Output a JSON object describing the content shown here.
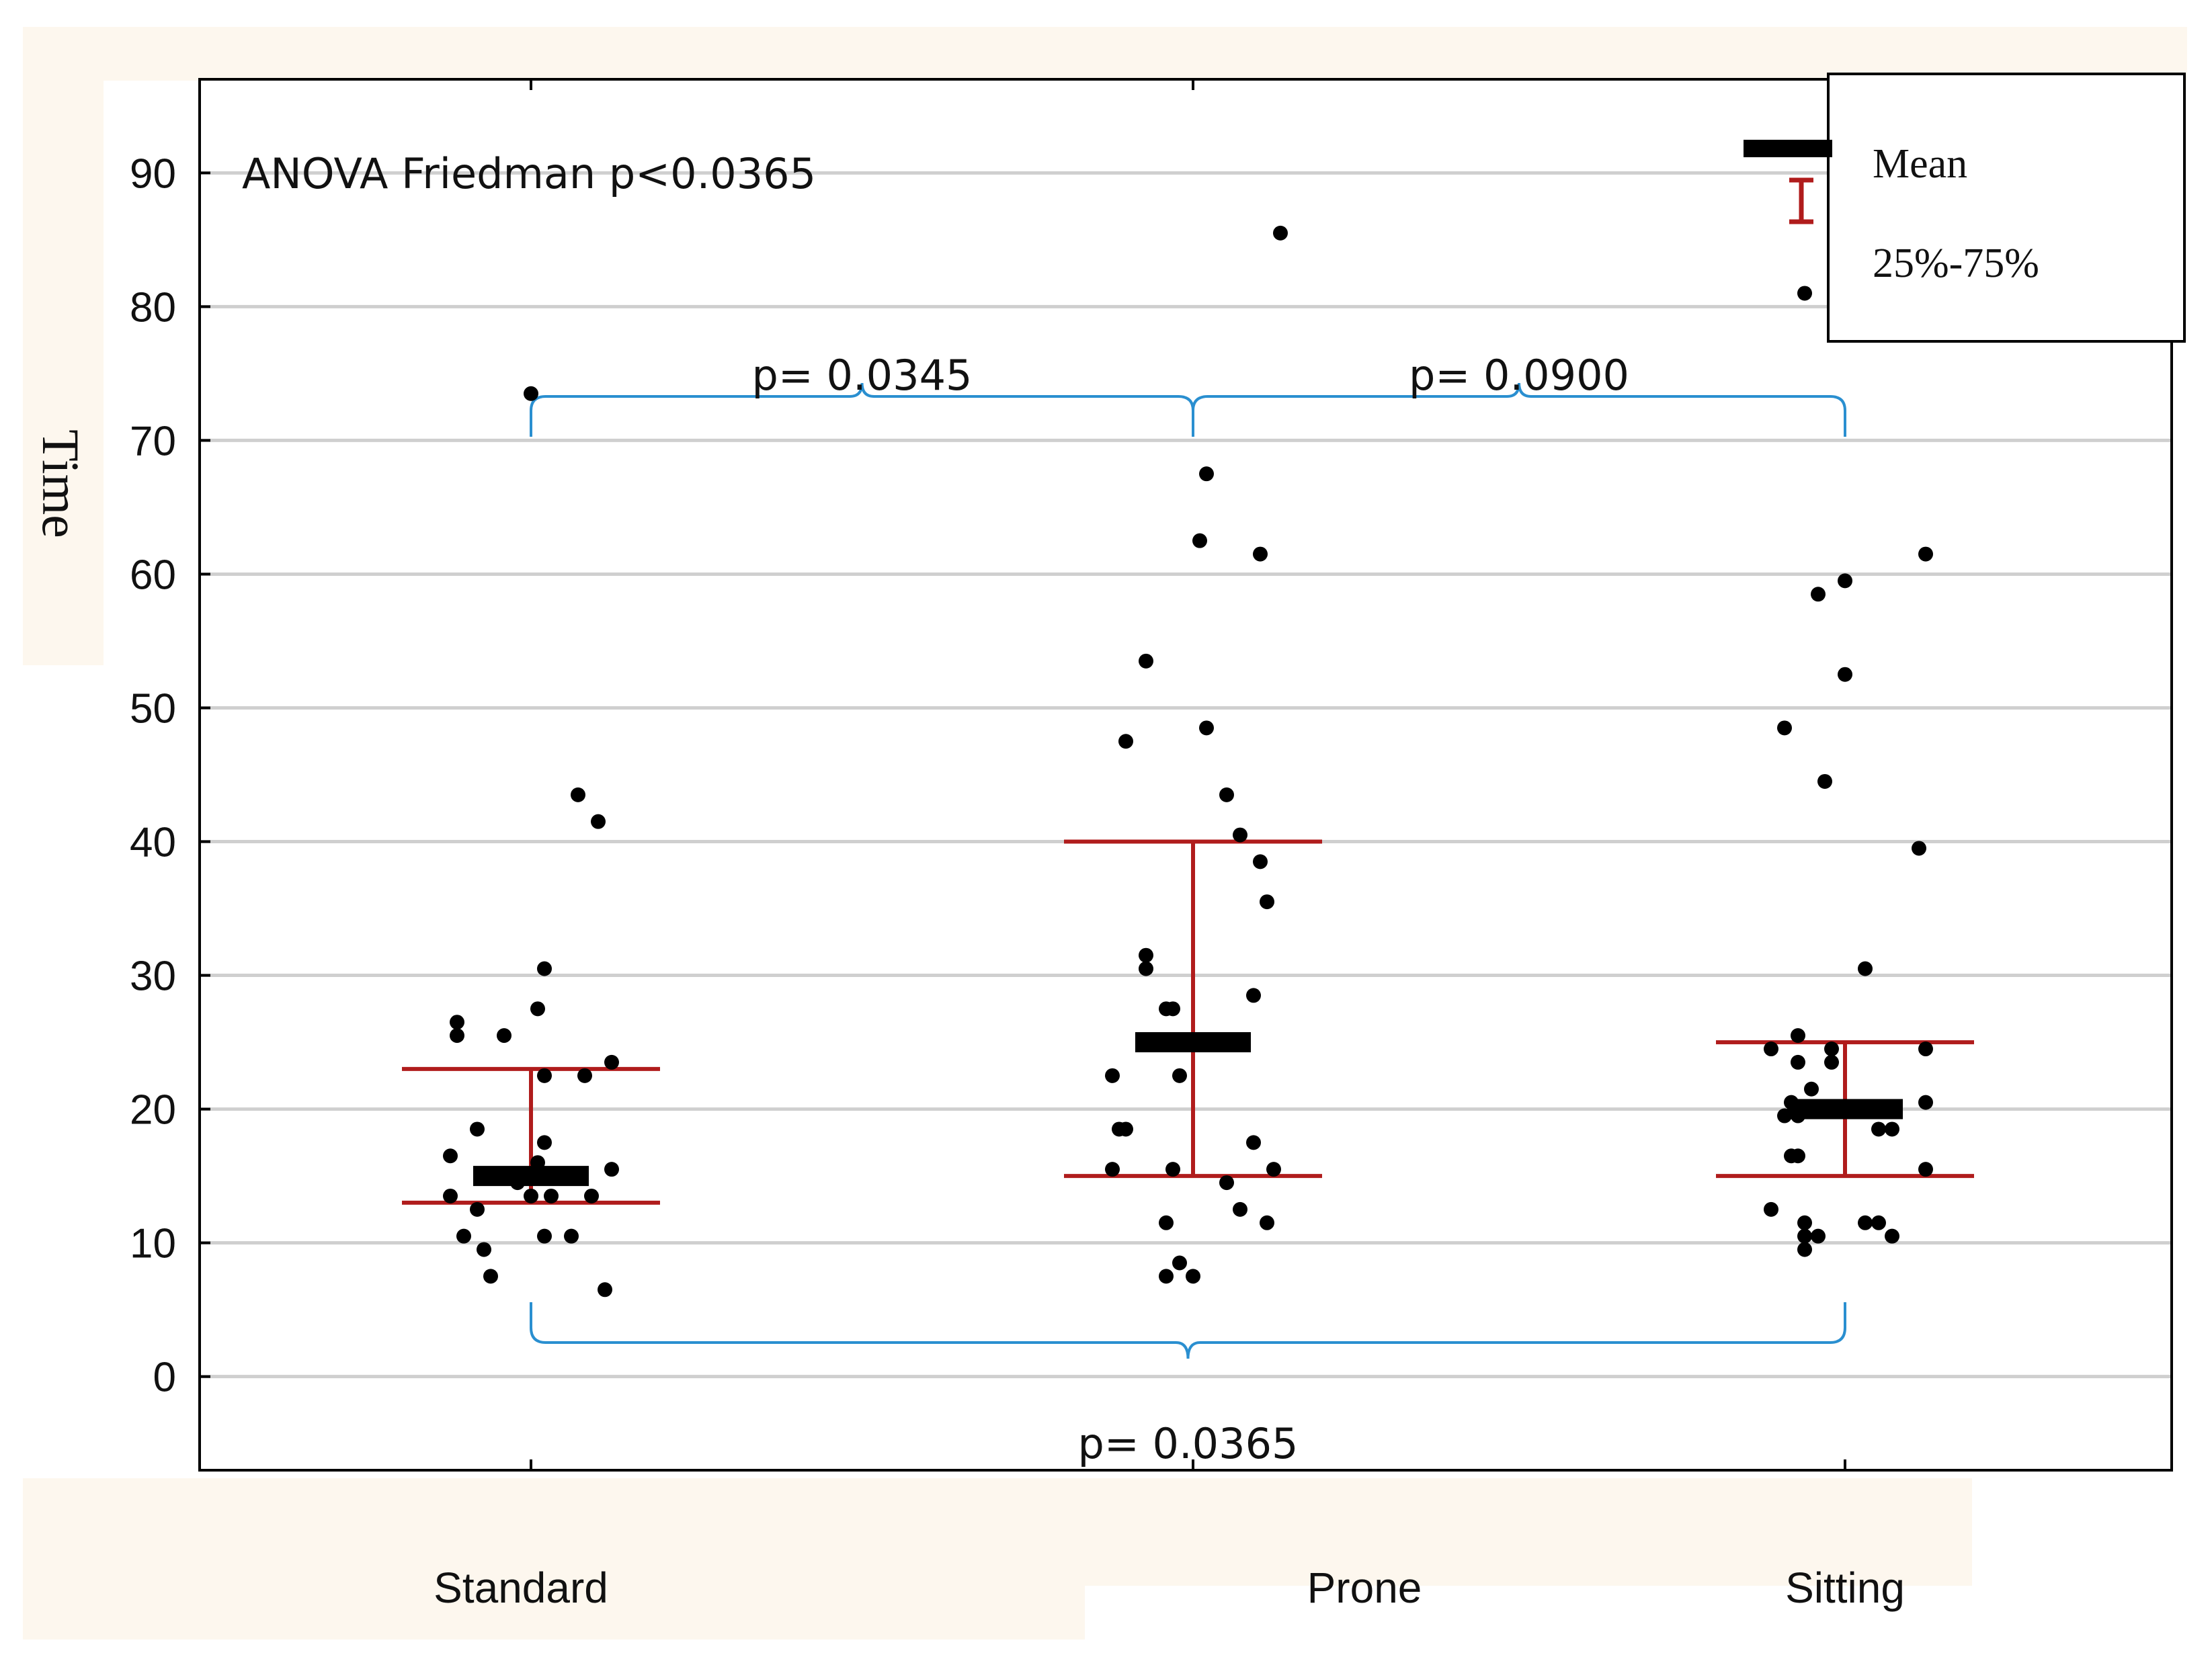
{
  "chart_data": {
    "type": "scatter",
    "title": "",
    "xlabel": "",
    "ylabel": "Time",
    "ylim": [
      -7,
      97
    ],
    "yticks": [
      0,
      10,
      20,
      30,
      40,
      50,
      60,
      70,
      80,
      90
    ],
    "grid": true,
    "legend_position": "top-right",
    "categories": [
      "Standard",
      "Prone",
      "Sitting"
    ],
    "annotation": "ANOVA Friedman p<0.0365",
    "comparisons": [
      {
        "from": "Standard",
        "to": "Prone",
        "label": "p= 0.0345",
        "side": "top"
      },
      {
        "from": "Prone",
        "to": "Sitting",
        "label": "p= 0.0900",
        "side": "top"
      },
      {
        "from": "Standard",
        "to": "Sitting",
        "label": "p= 0.0365",
        "side": "bottom"
      }
    ],
    "legend": {
      "mean": "Mean",
      "range": "25%-75%"
    },
    "colors": {
      "mean": "#000000",
      "range": "#b01c1c",
      "points": "#000000",
      "bracket": "#2a8fd0",
      "grid": "#cfcfcf"
    },
    "summary": [
      {
        "category": "Standard",
        "mean": 15,
        "q1": 13,
        "q3": 23
      },
      {
        "category": "Prone",
        "mean": 25,
        "q1": 15,
        "q3": 40
      },
      {
        "category": "Sitting",
        "mean": 20,
        "q1": 15,
        "q3": 25
      }
    ],
    "series": [
      {
        "category": "Standard",
        "points": [
          {
            "jitter": 0,
            "y": 73.5
          },
          {
            "jitter": 0.07,
            "y": 43.5
          },
          {
            "jitter": 0.1,
            "y": 41.5
          },
          {
            "jitter": 0.02,
            "y": 30.5
          },
          {
            "jitter": 0.01,
            "y": 27.5
          },
          {
            "jitter": -0.11,
            "y": 26.5
          },
          {
            "jitter": -0.11,
            "y": 25.5
          },
          {
            "jitter": -0.04,
            "y": 25.5
          },
          {
            "jitter": 0.12,
            "y": 23.5
          },
          {
            "jitter": 0.02,
            "y": 22.5
          },
          {
            "jitter": 0.08,
            "y": 22.5
          },
          {
            "jitter": -0.08,
            "y": 18.5
          },
          {
            "jitter": 0.02,
            "y": 17.5
          },
          {
            "jitter": -0.12,
            "y": 16.5
          },
          {
            "jitter": 0.01,
            "y": 16
          },
          {
            "jitter": -0.02,
            "y": 14.5
          },
          {
            "jitter": 0.12,
            "y": 15.5
          },
          {
            "jitter": -0.12,
            "y": 13.5
          },
          {
            "jitter": 0,
            "y": 13.5
          },
          {
            "jitter": 0.03,
            "y": 13.5
          },
          {
            "jitter": 0.09,
            "y": 13.5
          },
          {
            "jitter": -0.08,
            "y": 12.5
          },
          {
            "jitter": -0.1,
            "y": 10.5
          },
          {
            "jitter": 0.02,
            "y": 10.5
          },
          {
            "jitter": 0.06,
            "y": 10.5
          },
          {
            "jitter": -0.07,
            "y": 9.5
          },
          {
            "jitter": -0.06,
            "y": 7.5
          },
          {
            "jitter": 0.11,
            "y": 6.5
          }
        ]
      },
      {
        "category": "Prone",
        "points": [
          {
            "jitter": 0.13,
            "y": 85.5
          },
          {
            "jitter": 0.02,
            "y": 67.5
          },
          {
            "jitter": 0.01,
            "y": 62.5
          },
          {
            "jitter": 0.1,
            "y": 61.5
          },
          {
            "jitter": -0.07,
            "y": 53.5
          },
          {
            "jitter": -0.1,
            "y": 47.5
          },
          {
            "jitter": 0.02,
            "y": 48.5
          },
          {
            "jitter": 0.05,
            "y": 43.5
          },
          {
            "jitter": 0.07,
            "y": 40.5
          },
          {
            "jitter": 0.1,
            "y": 38.5
          },
          {
            "jitter": 0.11,
            "y": 35.5
          },
          {
            "jitter": -0.07,
            "y": 31.5
          },
          {
            "jitter": -0.07,
            "y": 30.5
          },
          {
            "jitter": 0.09,
            "y": 28.5
          },
          {
            "jitter": -0.04,
            "y": 27.5
          },
          {
            "jitter": -0.03,
            "y": 27.5
          },
          {
            "jitter": -0.12,
            "y": 22.5
          },
          {
            "jitter": -0.02,
            "y": 22.5
          },
          {
            "jitter": -0.11,
            "y": 18.5
          },
          {
            "jitter": -0.1,
            "y": 18.5
          },
          {
            "jitter": -0.12,
            "y": 15.5
          },
          {
            "jitter": -0.03,
            "y": 15.5
          },
          {
            "jitter": 0.12,
            "y": 15.5
          },
          {
            "jitter": 0.09,
            "y": 17.5
          },
          {
            "jitter": 0.05,
            "y": 14.5
          },
          {
            "jitter": 0.07,
            "y": 12.5
          },
          {
            "jitter": -0.04,
            "y": 11.5
          },
          {
            "jitter": 0.11,
            "y": 11.5
          },
          {
            "jitter": -0.02,
            "y": 8.5
          },
          {
            "jitter": -0.04,
            "y": 7.5
          },
          {
            "jitter": 0,
            "y": 7.5
          }
        ]
      },
      {
        "category": "Sitting",
        "points": [
          {
            "jitter": -0.06,
            "y": 81
          },
          {
            "jitter": 0.12,
            "y": 61.5
          },
          {
            "jitter": 0,
            "y": 59.5
          },
          {
            "jitter": -0.04,
            "y": 58.5
          },
          {
            "jitter": 0,
            "y": 52.5
          },
          {
            "jitter": -0.09,
            "y": 48.5
          },
          {
            "jitter": -0.03,
            "y": 44.5
          },
          {
            "jitter": 0.11,
            "y": 39.5
          },
          {
            "jitter": 0.03,
            "y": 30.5
          },
          {
            "jitter": -0.07,
            "y": 25.5
          },
          {
            "jitter": -0.11,
            "y": 24.5
          },
          {
            "jitter": -0.02,
            "y": 24.5
          },
          {
            "jitter": 0.12,
            "y": 24.5
          },
          {
            "jitter": -0.07,
            "y": 23.5
          },
          {
            "jitter": -0.02,
            "y": 23.5
          },
          {
            "jitter": -0.05,
            "y": 21.5
          },
          {
            "jitter": -0.08,
            "y": 20.5
          },
          {
            "jitter": 0.12,
            "y": 20.5
          },
          {
            "jitter": -0.09,
            "y": 19.5
          },
          {
            "jitter": -0.07,
            "y": 19.5
          },
          {
            "jitter": 0.05,
            "y": 18.5
          },
          {
            "jitter": 0.07,
            "y": 18.5
          },
          {
            "jitter": -0.08,
            "y": 16.5
          },
          {
            "jitter": -0.07,
            "y": 16.5
          },
          {
            "jitter": 0.12,
            "y": 15.5
          },
          {
            "jitter": -0.11,
            "y": 12.5
          },
          {
            "jitter": -0.06,
            "y": 11.5
          },
          {
            "jitter": 0.03,
            "y": 11.5
          },
          {
            "jitter": 0.05,
            "y": 11.5
          },
          {
            "jitter": -0.06,
            "y": 10.5
          },
          {
            "jitter": -0.04,
            "y": 10.5
          },
          {
            "jitter": 0.07,
            "y": 10.5
          },
          {
            "jitter": -0.06,
            "y": 9.5
          }
        ]
      }
    ]
  }
}
